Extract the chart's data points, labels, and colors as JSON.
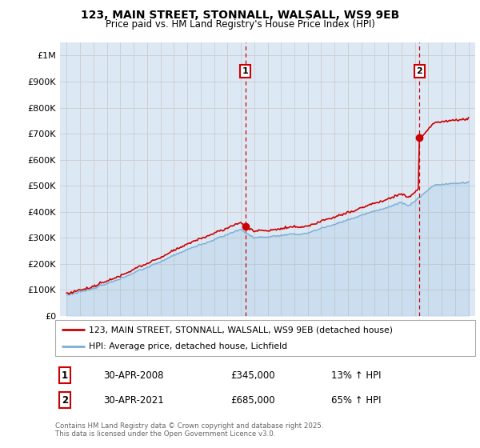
{
  "title": "123, MAIN STREET, STONNALL, WALSALL, WS9 9EB",
  "subtitle": "Price paid vs. HM Land Registry's House Price Index (HPI)",
  "plot_bg": "#dce9f5",
  "red_color": "#cc0000",
  "blue_color": "#7bafd4",
  "ylim": [
    0,
    1050000
  ],
  "yticks": [
    0,
    100000,
    200000,
    300000,
    400000,
    500000,
    600000,
    700000,
    800000,
    900000,
    1000000
  ],
  "ytick_labels": [
    "£0",
    "£100K",
    "£200K",
    "£300K",
    "£400K",
    "£500K",
    "£600K",
    "£700K",
    "£800K",
    "£900K",
    "£1M"
  ],
  "ann1": {
    "label": "1",
    "date": "30-APR-2008",
    "price": "£345,000",
    "pct": "13% ↑ HPI",
    "x_year": 2008.33,
    "y_val": 345000
  },
  "ann2": {
    "label": "2",
    "date": "30-APR-2021",
    "price": "£685,000",
    "pct": "65% ↑ HPI",
    "x_year": 2021.33,
    "y_val": 685000
  },
  "legend_line1": "123, MAIN STREET, STONNALL, WALSALL, WS9 9EB (detached house)",
  "legend_line2": "HPI: Average price, detached house, Lichfield",
  "footer": "Contains HM Land Registry data © Crown copyright and database right 2025.\nThis data is licensed under the Open Government Licence v3.0.",
  "xlim": [
    1994.5,
    2025.5
  ],
  "xticks": [
    1995,
    1996,
    1997,
    1998,
    1999,
    2000,
    2001,
    2002,
    2003,
    2004,
    2005,
    2006,
    2007,
    2008,
    2009,
    2010,
    2011,
    2012,
    2013,
    2014,
    2015,
    2016,
    2017,
    2018,
    2019,
    2020,
    2021,
    2022,
    2023,
    2024,
    2025
  ]
}
